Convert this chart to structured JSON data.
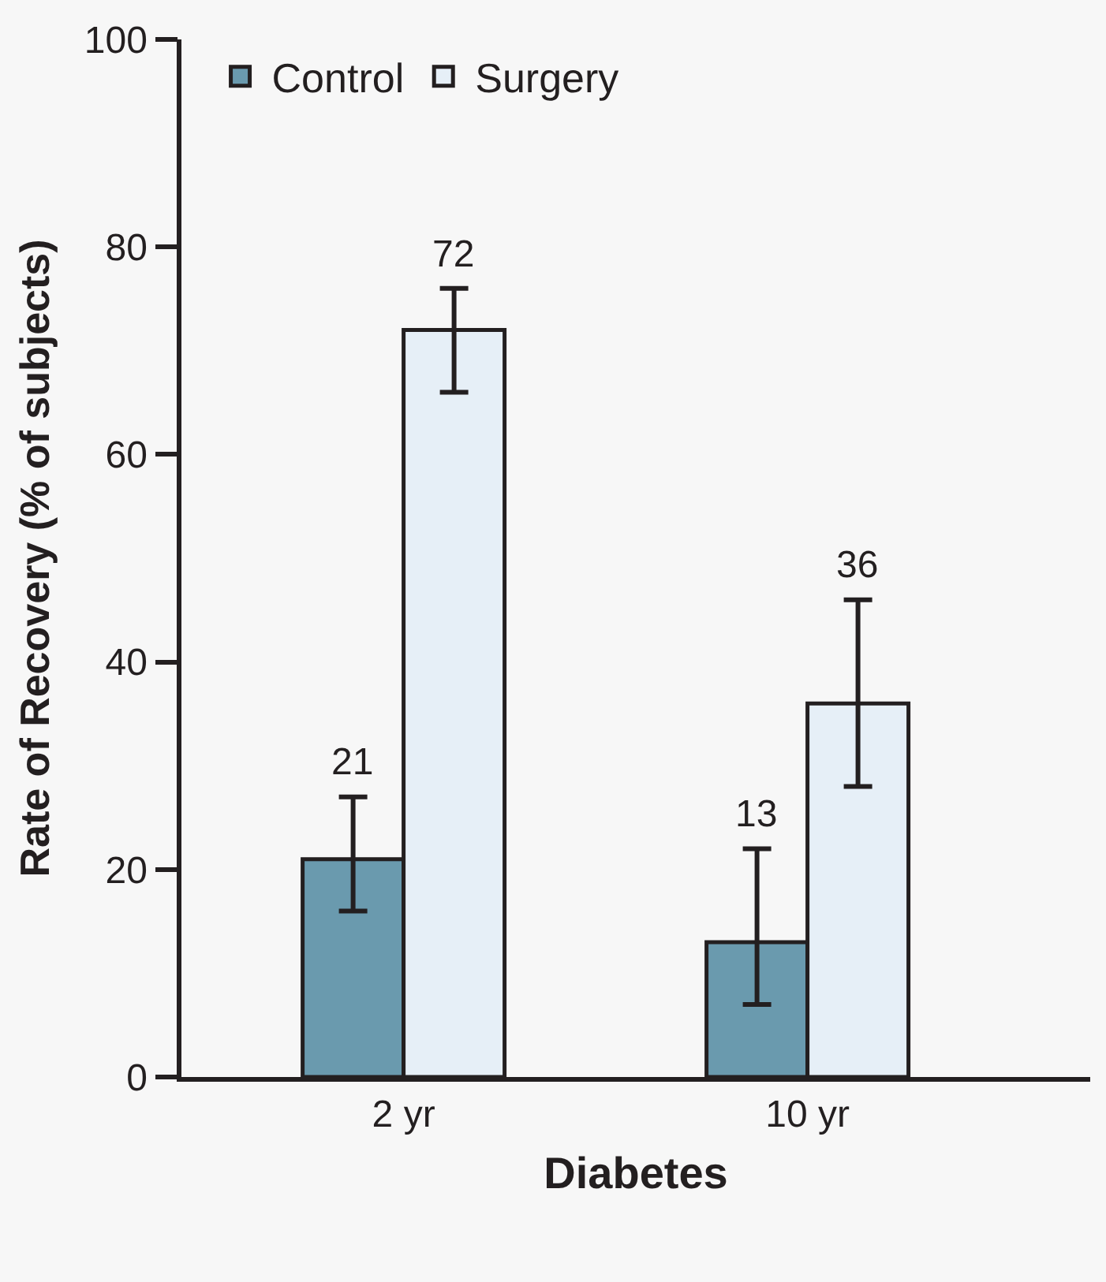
{
  "chart_data": {
    "type": "bar",
    "xlabel": "Diabetes",
    "ylabel": "Rate of Recovery (% of subjects)",
    "categories": [
      "2 yr",
      "10 yr"
    ],
    "series": [
      {
        "name": "Control",
        "color": "#6a9aae",
        "values": [
          21,
          13
        ],
        "errors": [
          [
            16,
            27
          ],
          [
            7,
            22
          ]
        ]
      },
      {
        "name": "Surgery",
        "color": "#e6eff7",
        "values": [
          72,
          36
        ],
        "errors": [
          [
            66,
            76
          ],
          [
            28,
            46
          ]
        ]
      }
    ],
    "ylim": [
      0,
      100
    ],
    "yticks": [
      0,
      20,
      40,
      60,
      80,
      100
    ],
    "data_labels": true,
    "grid": false,
    "legend": "top"
  }
}
